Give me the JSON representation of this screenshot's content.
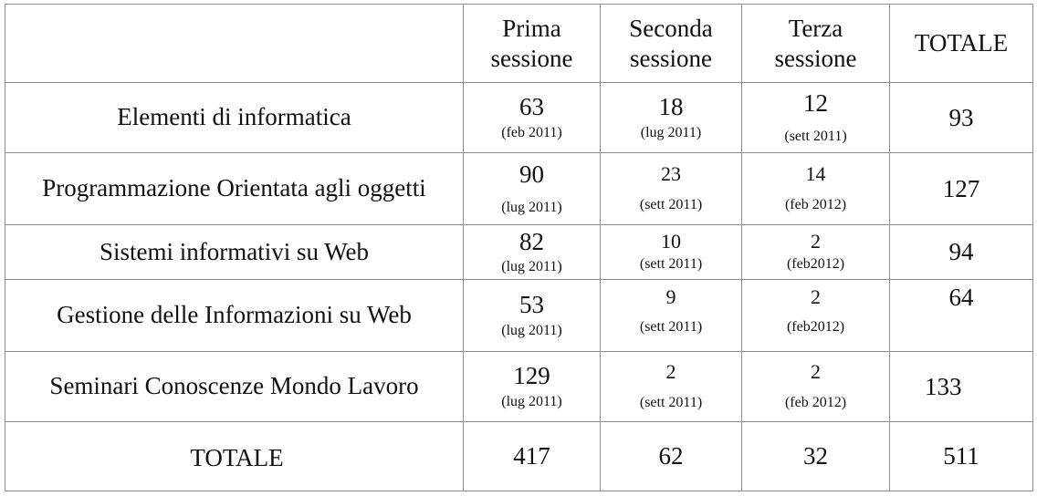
{
  "header": {
    "col1": "Prima sessione",
    "col2": "Seconda sessione",
    "col3": "Terza sessione",
    "col4": "TOTALE"
  },
  "rows": [
    {
      "label": "Elementi di informatica",
      "s1": {
        "value": "63",
        "date": "(feb 2011)"
      },
      "s2": {
        "value": "18",
        "date": "(lug 2011)"
      },
      "s3": {
        "value": "12",
        "date": "(sett 2011)"
      },
      "total": "93"
    },
    {
      "label": "Programmazione Orientata agli oggetti",
      "s1": {
        "value": "90",
        "date": "(lug 2011)"
      },
      "s2": {
        "value": "23",
        "date": "(sett 2011)"
      },
      "s3": {
        "value": "14",
        "date": "(feb 2012)"
      },
      "total": "127"
    },
    {
      "label": "Sistemi informativi su Web",
      "s1": {
        "value": "82",
        "date": "(lug 2011)"
      },
      "s2": {
        "value": "10",
        "date": "(sett 2011)"
      },
      "s3": {
        "value": "2",
        "date": "(feb2012)"
      },
      "total": "94"
    },
    {
      "label": "Gestione delle Informazioni su Web",
      "s1": {
        "value": "53",
        "date": "(lug 2011)"
      },
      "s2": {
        "value": "9",
        "date": "(sett 2011)"
      },
      "s3": {
        "value": "2",
        "date": "(feb2012)"
      },
      "total": "64"
    },
    {
      "label": "Seminari Conoscenze Mondo Lavoro",
      "s1": {
        "value": "129",
        "date": "(lug 2011)"
      },
      "s2": {
        "value": "2",
        "date": "(sett 2011)"
      },
      "s3": {
        "value": "2",
        "date": "(feb 2012)"
      },
      "total": "133"
    }
  ],
  "totals": {
    "label": "TOTALE",
    "s1": "417",
    "s2": "62",
    "s3": "32",
    "total": "511"
  }
}
